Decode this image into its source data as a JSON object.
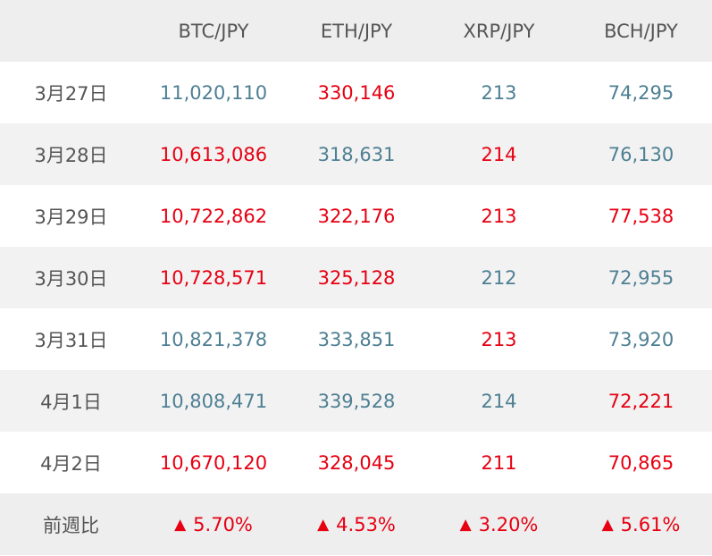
{
  "colors": {
    "up": "#e60012",
    "down": "#4e7f93",
    "header_bg": "#eeeeee",
    "row_shade": "#f2f2f2"
  },
  "table": {
    "columns": [
      "",
      "BTC/JPY",
      "ETH/JPY",
      "XRP/JPY",
      "BCH/JPY"
    ],
    "rows": [
      {
        "date": "3月27日",
        "cells": [
          {
            "value": "11,020,110",
            "trend": "down"
          },
          {
            "value": "330,146",
            "trend": "up"
          },
          {
            "value": "213",
            "trend": "down"
          },
          {
            "value": "74,295",
            "trend": "down"
          }
        ]
      },
      {
        "date": "3月28日",
        "cells": [
          {
            "value": "10,613,086",
            "trend": "up"
          },
          {
            "value": "318,631",
            "trend": "down"
          },
          {
            "value": "214",
            "trend": "up"
          },
          {
            "value": "76,130",
            "trend": "down"
          }
        ]
      },
      {
        "date": "3月29日",
        "cells": [
          {
            "value": "10,722,862",
            "trend": "up"
          },
          {
            "value": "322,176",
            "trend": "up"
          },
          {
            "value": "213",
            "trend": "up"
          },
          {
            "value": "77,538",
            "trend": "up"
          }
        ]
      },
      {
        "date": "3月30日",
        "cells": [
          {
            "value": "10,728,571",
            "trend": "up"
          },
          {
            "value": "325,128",
            "trend": "up"
          },
          {
            "value": "212",
            "trend": "down"
          },
          {
            "value": "72,955",
            "trend": "down"
          }
        ]
      },
      {
        "date": "3月31日",
        "cells": [
          {
            "value": "10,821,378",
            "trend": "down"
          },
          {
            "value": "333,851",
            "trend": "down"
          },
          {
            "value": "213",
            "trend": "up"
          },
          {
            "value": "73,920",
            "trend": "down"
          }
        ]
      },
      {
        "date": "4月1日",
        "cells": [
          {
            "value": "10,808,471",
            "trend": "down"
          },
          {
            "value": "339,528",
            "trend": "down"
          },
          {
            "value": "214",
            "trend": "down"
          },
          {
            "value": "72,221",
            "trend": "up"
          }
        ]
      },
      {
        "date": "4月2日",
        "cells": [
          {
            "value": "10,670,120",
            "trend": "up"
          },
          {
            "value": "328,045",
            "trend": "up"
          },
          {
            "value": "211",
            "trend": "up"
          },
          {
            "value": "70,865",
            "trend": "up"
          }
        ]
      }
    ],
    "footer": {
      "label": "前週比",
      "arrow": "▲",
      "changes": [
        "5.70%",
        "4.53%",
        "3.20%",
        "5.61%"
      ]
    }
  }
}
